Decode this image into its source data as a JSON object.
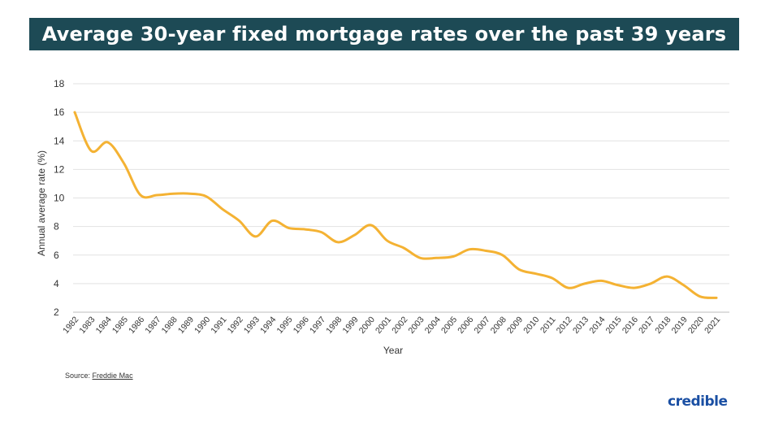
{
  "header": {
    "title": "Average 30-year fixed mortgage rates over the past 39 years"
  },
  "footer": {
    "source_label": "Source:",
    "source_link": "Freddie Mac",
    "brand": "credible",
    "brand_color": "#1a4fa3"
  },
  "colors": {
    "line": "#f4b233",
    "title_bg": "#1d4a55",
    "grid": "#e2e2e2"
  },
  "chart_data": {
    "type": "line",
    "title": "Average 30-year fixed mortgage rates over the past 39 years",
    "xlabel": "Year",
    "ylabel": "Annual average rate (%)",
    "ylim": [
      2,
      18
    ],
    "yticks": [
      2,
      4,
      6,
      8,
      10,
      12,
      14,
      16,
      18
    ],
    "grid": true,
    "categories": [
      "1982",
      "1983",
      "1984",
      "1985",
      "1986",
      "1987",
      "1988",
      "1989",
      "1990",
      "1991",
      "1992",
      "1993",
      "1994",
      "1995",
      "1996",
      "1997",
      "1998",
      "1999",
      "2000",
      "2001",
      "2002",
      "2003",
      "2004",
      "2005",
      "2006",
      "2007",
      "2008",
      "2009",
      "2010",
      "2011",
      "2012",
      "2013",
      "2014",
      "2015",
      "2016",
      "2017",
      "2018",
      "2019",
      "2020",
      "2021"
    ],
    "series": [
      {
        "values": [
          16.0,
          13.3,
          13.9,
          12.4,
          10.2,
          10.2,
          10.3,
          10.3,
          10.1,
          9.2,
          8.4,
          7.3,
          8.4,
          7.9,
          7.8,
          7.6,
          6.9,
          7.4,
          8.1,
          7.0,
          6.5,
          5.8,
          5.8,
          5.9,
          6.4,
          6.3,
          6.0,
          5.0,
          4.7,
          4.4,
          3.7,
          4.0,
          4.2,
          3.9,
          3.7,
          4.0,
          4.5,
          3.9,
          3.1,
          3.0
        ]
      }
    ]
  }
}
